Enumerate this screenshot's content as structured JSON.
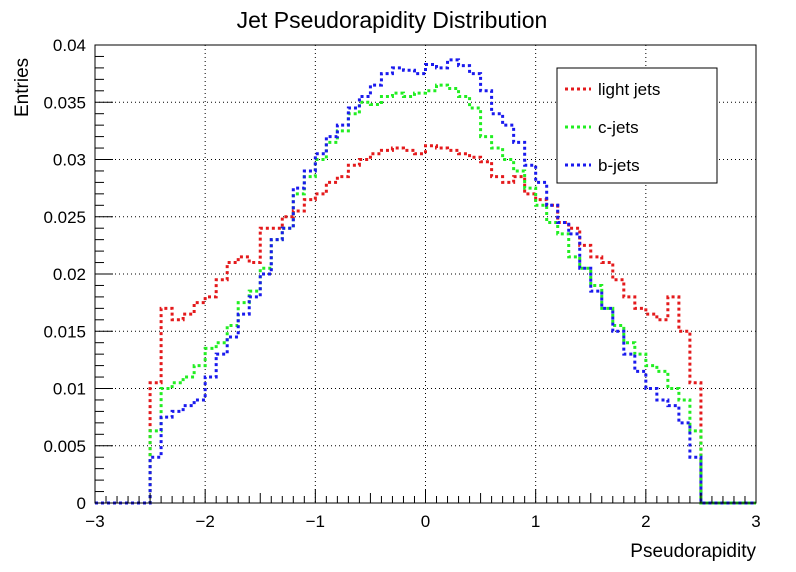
{
  "chart_data": {
    "type": "line",
    "title": "Jet Pseudorapidity Distribution",
    "xlabel": "Pseudorapidity",
    "ylabel": "Entries",
    "xlim": [
      -3,
      3
    ],
    "ylim": [
      0,
      0.04
    ],
    "x_ticks": [
      "−3",
      "−2",
      "−1",
      "0",
      "1",
      "2",
      "3"
    ],
    "x_tick_values": [
      -3,
      -2,
      -1,
      0,
      1,
      2,
      3
    ],
    "y_ticks": [
      "0",
      "0.005",
      "0.01",
      "0.015",
      "0.02",
      "0.025",
      "0.03",
      "0.035",
      "0.04"
    ],
    "y_tick_values": [
      0,
      0.005,
      0.01,
      0.015,
      0.02,
      0.025,
      0.03,
      0.035,
      0.04
    ],
    "grid": true,
    "legend_position": "top-right",
    "histogram": true,
    "bin_edges": [
      -3.0,
      -2.5,
      -2.4,
      -2.3,
      -2.2,
      -2.1,
      -2.0,
      -1.9,
      -1.8,
      -1.7,
      -1.6,
      -1.5,
      -1.4,
      -1.3,
      -1.2,
      -1.1,
      -1.0,
      -0.9,
      -0.8,
      -0.7,
      -0.6,
      -0.5,
      -0.4,
      -0.3,
      -0.2,
      -0.1,
      0.0,
      0.1,
      0.2,
      0.3,
      0.4,
      0.5,
      0.6,
      0.7,
      0.8,
      0.9,
      1.0,
      1.1,
      1.2,
      1.3,
      1.4,
      1.5,
      1.6,
      1.7,
      1.8,
      1.9,
      2.0,
      2.1,
      2.2,
      2.3,
      2.4,
      2.5,
      3.0
    ],
    "series": [
      {
        "name": "light jets",
        "color": "#e41a1c",
        "values": [
          0,
          0.0105,
          0.017,
          0.016,
          0.0165,
          0.0175,
          0.018,
          0.0195,
          0.021,
          0.0215,
          0.021,
          0.024,
          0.024,
          0.025,
          0.0255,
          0.0265,
          0.027,
          0.028,
          0.0285,
          0.0295,
          0.03,
          0.0305,
          0.0308,
          0.031,
          0.0308,
          0.0305,
          0.0312,
          0.031,
          0.0308,
          0.0305,
          0.0302,
          0.0298,
          0.0285,
          0.028,
          0.0285,
          0.027,
          0.0265,
          0.026,
          0.0245,
          0.024,
          0.0225,
          0.0215,
          0.021,
          0.0195,
          0.018,
          0.017,
          0.0165,
          0.016,
          0.018,
          0.015,
          0.0105,
          0
        ]
      },
      {
        "name": "c-jets",
        "color": "#22ee22",
        "values": [
          0,
          0.0063,
          0.01,
          0.0105,
          0.011,
          0.012,
          0.0135,
          0.014,
          0.0155,
          0.0175,
          0.0185,
          0.0205,
          0.023,
          0.024,
          0.027,
          0.0285,
          0.03,
          0.0315,
          0.0325,
          0.034,
          0.035,
          0.0348,
          0.0355,
          0.0358,
          0.0355,
          0.0358,
          0.036,
          0.0365,
          0.0362,
          0.0355,
          0.0345,
          0.032,
          0.031,
          0.03,
          0.029,
          0.0275,
          0.026,
          0.0245,
          0.0235,
          0.0215,
          0.0205,
          0.019,
          0.017,
          0.0155,
          0.014,
          0.013,
          0.012,
          0.0115,
          0.01,
          0.009,
          0.0063,
          0
        ]
      },
      {
        "name": "b-jets",
        "color": "#1a1aee",
        "values": [
          0,
          0.004,
          0.0075,
          0.008,
          0.0085,
          0.009,
          0.011,
          0.013,
          0.0145,
          0.0165,
          0.018,
          0.02,
          0.023,
          0.024,
          0.0275,
          0.029,
          0.0305,
          0.032,
          0.033,
          0.0345,
          0.0355,
          0.0365,
          0.0375,
          0.038,
          0.0378,
          0.0375,
          0.0383,
          0.038,
          0.0387,
          0.0382,
          0.0375,
          0.036,
          0.034,
          0.033,
          0.0315,
          0.0295,
          0.028,
          0.026,
          0.0245,
          0.0235,
          0.0205,
          0.0185,
          0.017,
          0.015,
          0.013,
          0.0115,
          0.01,
          0.009,
          0.0085,
          0.007,
          0.004,
          0
        ]
      }
    ]
  }
}
